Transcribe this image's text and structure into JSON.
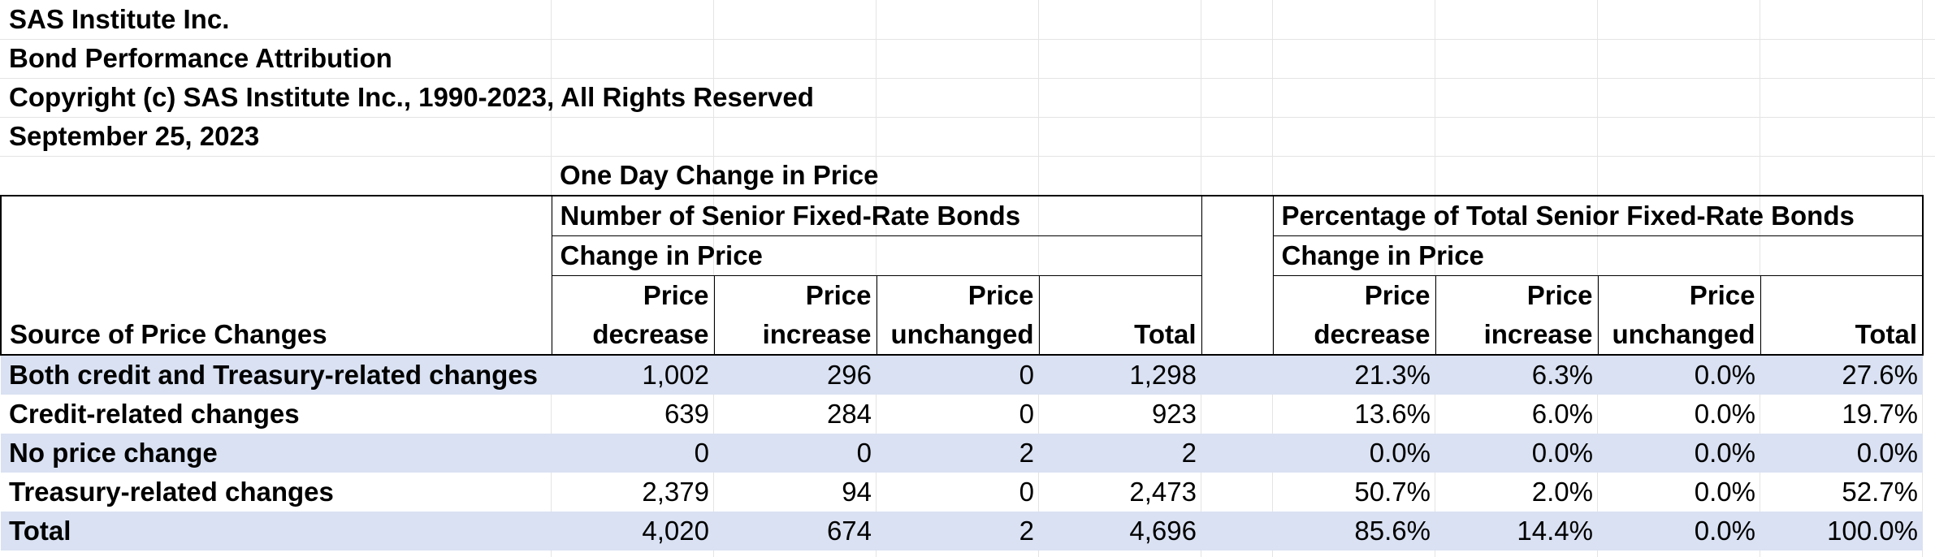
{
  "header_lines": {
    "company": "SAS Institute Inc.",
    "report_title": "Bond Performance Attribution",
    "copyright": "Copyright (c) SAS Institute Inc., 1990-2023, All Rights Reserved",
    "date": "September 25, 2023"
  },
  "table": {
    "spanning_title": "One Day Change in Price",
    "group_count": "Number of Senior Fixed-Rate Bonds",
    "group_pct": "Percentage of Total Senior Fixed-Rate Bonds",
    "subgroup_count": "Change in Price",
    "subgroup_pct": "Change in Price",
    "row_header_label": "Source of Price Changes",
    "columns": {
      "decrease_top": "Price",
      "decrease_bottom": "decrease",
      "increase_top": "Price",
      "increase_bottom": "increase",
      "unchanged_top": "Price",
      "unchanged_bottom": "unchanged",
      "total": "Total"
    },
    "rows": [
      {
        "label": "Both credit and Treasury-related changes",
        "counts": [
          "1,002",
          "296",
          "0",
          "1,298"
        ],
        "pcts": [
          "21.3%",
          "6.3%",
          "0.0%",
          "27.6%"
        ]
      },
      {
        "label": "Credit-related changes",
        "counts": [
          "639",
          "284",
          "0",
          "923"
        ],
        "pcts": [
          "13.6%",
          "6.0%",
          "0.0%",
          "19.7%"
        ]
      },
      {
        "label": "No price change",
        "counts": [
          "0",
          "0",
          "2",
          "2"
        ],
        "pcts": [
          "0.0%",
          "0.0%",
          "0.0%",
          "0.0%"
        ]
      },
      {
        "label": "Treasury-related changes",
        "counts": [
          "2,379",
          "94",
          "0",
          "2,473"
        ],
        "pcts": [
          "50.7%",
          "2.0%",
          "0.0%",
          "52.7%"
        ]
      },
      {
        "label": "Total",
        "counts": [
          "4,020",
          "674",
          "2",
          "4,696"
        ],
        "pcts": [
          "85.6%",
          "14.4%",
          "0.0%",
          "100.0%"
        ]
      }
    ]
  },
  "colors": {
    "band": "#d9e1f2",
    "gridline": "#e4e4e4",
    "border": "#000000"
  }
}
